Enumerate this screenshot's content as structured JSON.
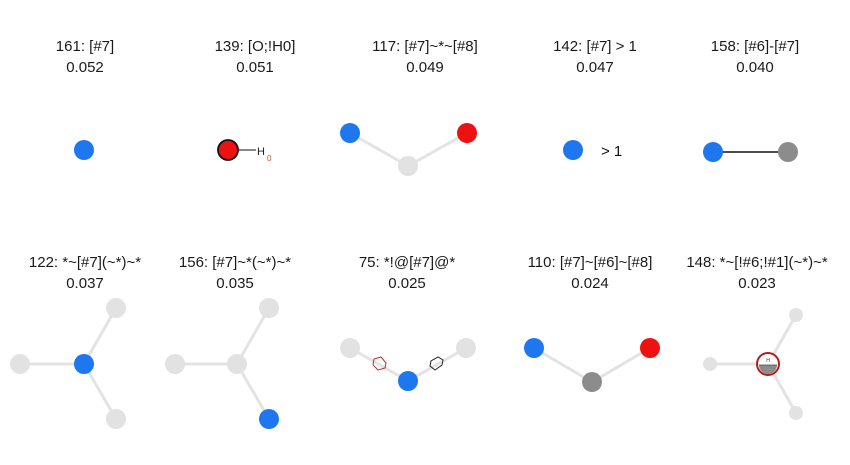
{
  "panels": [
    {
      "title": "161: [#7]",
      "score": "0.052"
    },
    {
      "title": "139: [O;!H0]",
      "score": "0.051",
      "hydrogen_label": "H",
      "hydrogen_count": "0"
    },
    {
      "title": "117: [#7]~*~[#8]",
      "score": "0.049"
    },
    {
      "title": "142: [#7] > 1",
      "score": "0.047",
      "count_label": "> 1"
    },
    {
      "title": "158: [#6]-[#7]",
      "score": "0.040"
    },
    {
      "title": "122: *~[#7](~*)~*",
      "score": "0.037"
    },
    {
      "title": "156: [#7]~*(~*)~*",
      "score": "0.035"
    },
    {
      "title": "75: *!@[#7]@*",
      "score": "0.025"
    },
    {
      "title": "110: [#7]~[#6]~[#8]",
      "score": "0.024"
    },
    {
      "title": "148: *~[!#6;!#1](~*)~*",
      "score": "0.023",
      "center_atom_label": "H"
    }
  ],
  "colors": {
    "nitrogen": "#1f77f0",
    "oxygen": "#ee1111",
    "carbon": "#8c8c8c",
    "wildcard": "#e2e2e2",
    "not_ring_marker": "#c62828"
  }
}
